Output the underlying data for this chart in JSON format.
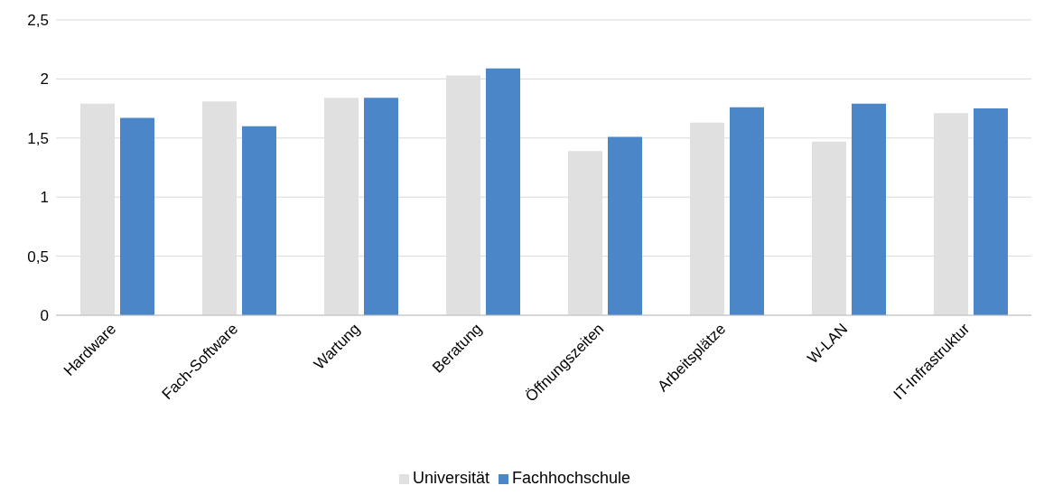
{
  "chart_data": {
    "type": "bar",
    "categories": [
      "Hardware",
      "Fach-Software",
      "Wartung",
      "Beratung",
      "Öffnungszeiten",
      "Arbeitsplätze",
      "W-LAN",
      "IT-Infrastruktur"
    ],
    "series": [
      {
        "name": "Universität",
        "color": "#e0e0e0",
        "values": [
          1.79,
          1.81,
          1.84,
          2.03,
          1.39,
          1.63,
          1.47,
          1.71
        ]
      },
      {
        "name": "Fachhochschule",
        "color": "#4a86c8",
        "values": [
          1.67,
          1.6,
          1.84,
          2.09,
          1.51,
          1.76,
          1.79,
          1.75
        ]
      }
    ],
    "ylim": [
      0,
      2.5
    ],
    "yticks": [
      0,
      {
        "value": 0.5,
        "label": "0,5"
      },
      1,
      {
        "value": 1.5,
        "label": "1,5"
      },
      2,
      {
        "value": 2.5,
        "label": "2,5"
      }
    ],
    "grid": "y",
    "legend": "bottom"
  }
}
